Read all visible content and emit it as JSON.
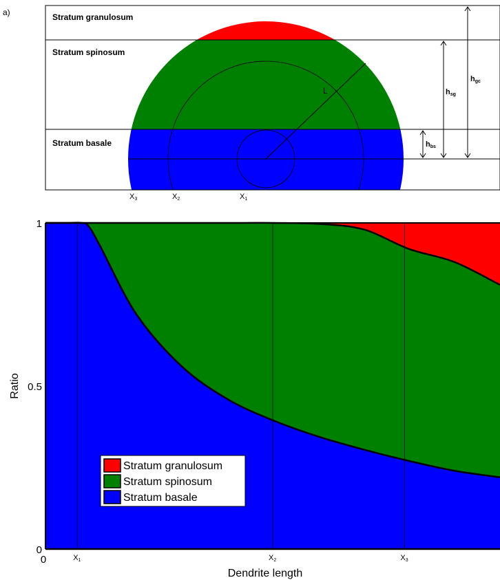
{
  "panel_label": "a)",
  "diagram": {
    "layers": [
      {
        "name": "Stratum granulosum",
        "color": "#ff0000"
      },
      {
        "name": "Stratum spinosum",
        "color": "#008000"
      },
      {
        "name": "Stratum basale",
        "color": "#0000ff"
      }
    ],
    "radius_label": "L",
    "heights": [
      {
        "base": "h",
        "sub": "bs"
      },
      {
        "base": "h",
        "sub": "sg"
      },
      {
        "base": "h",
        "sub": "gc"
      }
    ],
    "x_markers": [
      {
        "base": "X",
        "sub": "3"
      },
      {
        "base": "X",
        "sub": "2"
      },
      {
        "base": "X",
        "sub": "1"
      }
    ]
  },
  "chart_data": {
    "type": "area",
    "xlabel": "Dendrite length",
    "ylabel": "Ratio",
    "ylim": [
      0,
      1
    ],
    "xlim": [
      0,
      1
    ],
    "y_ticks": [
      "0",
      "0.5",
      "1"
    ],
    "x_tick_zero": "0",
    "x_markers": [
      {
        "base": "X",
        "sub": "1",
        "x": 0.07
      },
      {
        "base": "X",
        "sub": "2",
        "x": 0.5
      },
      {
        "base": "X",
        "sub": "3",
        "x": 0.79
      }
    ],
    "x": [
      0,
      0.05,
      0.08,
      0.095,
      0.12,
      0.2,
      0.3,
      0.4,
      0.5,
      0.6,
      0.7,
      0.8,
      0.9,
      1.0
    ],
    "series": [
      {
        "name": "Stratum basale",
        "color": "#0000ff",
        "values": [
          1.0,
          1.0,
          1.0,
          0.99,
          0.93,
          0.72,
          0.56,
          0.46,
          0.395,
          0.345,
          0.305,
          0.27,
          0.24,
          0.22
        ]
      },
      {
        "name": "Stratum spinosum",
        "color": "#008000",
        "values": [
          0.0,
          0.0,
          0.0,
          0.01,
          0.07,
          0.28,
          0.44,
          0.54,
          0.605,
          0.652,
          0.675,
          0.65,
          0.64,
          0.59
        ]
      },
      {
        "name": "Stratum granulosum",
        "color": "#ff0000",
        "values": [
          0.0,
          0.0,
          0.0,
          0.0,
          0.0,
          0.0,
          0.0,
          0.0,
          0.0,
          0.003,
          0.02,
          0.08,
          0.12,
          0.19
        ]
      }
    ],
    "legend_position": "bottom-left"
  }
}
